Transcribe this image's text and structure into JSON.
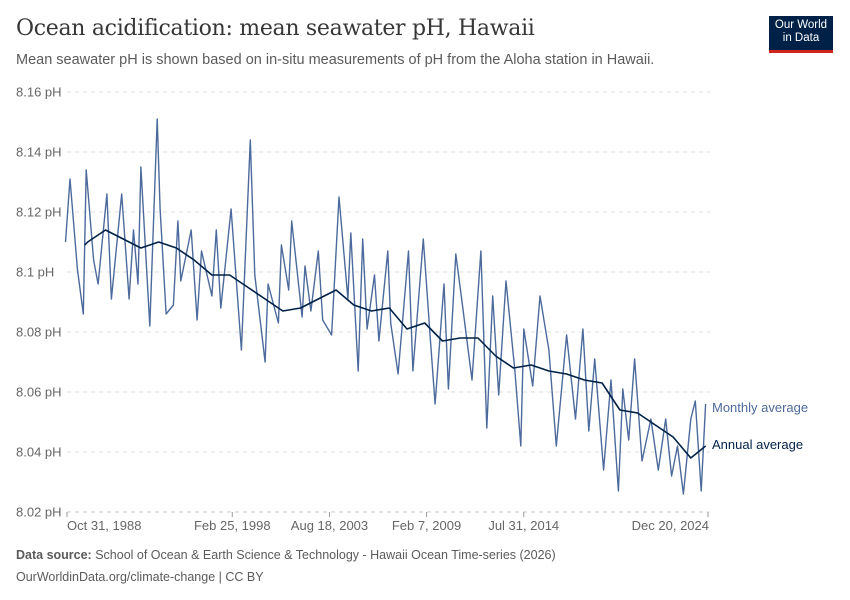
{
  "header": {
    "title": "Ocean acidification: mean seawater pH, Hawaii",
    "subtitle": "Mean seawater pH is shown based on in-situ measurements of pH from the Aloha station in Hawaii.",
    "logo_text": "Our World in Data",
    "logo_line1": "Our World",
    "logo_line2": "in Data"
  },
  "footer": {
    "source_label": "Data source:",
    "source_text": "School of Ocean & Earth Science & Technology - Hawaii Ocean Time-series (2026)",
    "link_text": "OurWorldinData.org/climate-change | CC BY"
  },
  "colors": {
    "monthly": "#4c6a9c",
    "annual": "#002147",
    "grid": "#dddddd",
    "brand": "#002147",
    "brand_accent": "#ce261e"
  },
  "chart_data": {
    "type": "line",
    "title": "Ocean acidification: mean seawater pH, Hawaii",
    "xlim": [
      "1988-10-31",
      "2024-12-20"
    ],
    "ylim": [
      8.02,
      8.16
    ],
    "grid": "horizontal dashed",
    "legend": "right (inline labels)",
    "y_ticks": [
      {
        "value": 8.02,
        "label": "8.02 pH"
      },
      {
        "value": 8.04,
        "label": "8.04 pH"
      },
      {
        "value": 8.06,
        "label": "8.06 pH"
      },
      {
        "value": 8.08,
        "label": "8.08 pH"
      },
      {
        "value": 8.1,
        "label": "8.1 pH"
      },
      {
        "value": 8.12,
        "label": "8.12 pH"
      },
      {
        "value": 8.14,
        "label": "8.14 pH"
      },
      {
        "value": 8.16,
        "label": "8.16 pH"
      }
    ],
    "x_ticks": [
      {
        "date": "1988-10-31",
        "label": "Oct 31, 1988"
      },
      {
        "date": "1998-02-25",
        "label": "Feb 25, 1998"
      },
      {
        "date": "2003-08-18",
        "label": "Aug 18, 2003"
      },
      {
        "date": "2009-02-07",
        "label": "Feb 7, 2009"
      },
      {
        "date": "2014-07-31",
        "label": "Jul 31, 2014"
      },
      {
        "date": "2024-12-20",
        "label": "Dec 20, 2024"
      }
    ],
    "series": [
      {
        "name": "Monthly average",
        "points": [
          [
            "1988-10",
            8.11
          ],
          [
            "1989-01",
            8.131
          ],
          [
            "1989-06",
            8.101
          ],
          [
            "1989-10",
            8.086
          ],
          [
            "1989-12",
            8.134
          ],
          [
            "1990-05",
            8.104
          ],
          [
            "1990-08",
            8.096
          ],
          [
            "1991-02",
            8.126
          ],
          [
            "1991-05",
            8.091
          ],
          [
            "1991-12",
            8.126
          ],
          [
            "1992-05",
            8.091
          ],
          [
            "1992-08",
            8.114
          ],
          [
            "1992-11",
            8.096
          ],
          [
            "1993-01",
            8.135
          ],
          [
            "1993-07",
            8.082
          ],
          [
            "1993-12",
            8.151
          ],
          [
            "1994-02",
            8.121
          ],
          [
            "1994-06",
            8.086
          ],
          [
            "1994-11",
            8.089
          ],
          [
            "1995-02",
            8.117
          ],
          [
            "1995-04",
            8.097
          ],
          [
            "1995-11",
            8.114
          ],
          [
            "1996-03",
            8.084
          ],
          [
            "1996-06",
            8.107
          ],
          [
            "1997-01",
            8.092
          ],
          [
            "1997-04",
            8.114
          ],
          [
            "1997-07",
            8.088
          ],
          [
            "1998-02",
            8.121
          ],
          [
            "1998-09",
            8.074
          ],
          [
            "1999-03",
            8.144
          ],
          [
            "1999-06",
            8.099
          ],
          [
            "2000-01",
            8.07
          ],
          [
            "2000-03",
            8.096
          ],
          [
            "2000-10",
            8.083
          ],
          [
            "2000-12",
            8.109
          ],
          [
            "2001-05",
            8.094
          ],
          [
            "2001-07",
            8.117
          ],
          [
            "2002-02",
            8.085
          ],
          [
            "2002-04",
            8.102
          ],
          [
            "2002-08",
            8.087
          ],
          [
            "2003-01",
            8.107
          ],
          [
            "2003-04",
            8.084
          ],
          [
            "2003-10",
            8.079
          ],
          [
            "2004-03",
            8.125
          ],
          [
            "2004-09",
            8.091
          ],
          [
            "2004-11",
            8.113
          ],
          [
            "2005-04",
            8.067
          ],
          [
            "2005-07",
            8.111
          ],
          [
            "2005-10",
            8.081
          ],
          [
            "2006-03",
            8.099
          ],
          [
            "2006-06",
            8.077
          ],
          [
            "2006-12",
            8.107
          ],
          [
            "2007-02",
            8.083
          ],
          [
            "2007-07",
            8.066
          ],
          [
            "2008-02",
            8.107
          ],
          [
            "2008-05",
            8.067
          ],
          [
            "2008-12",
            8.111
          ],
          [
            "2009-05",
            8.076
          ],
          [
            "2009-08",
            8.056
          ],
          [
            "2010-02",
            8.096
          ],
          [
            "2010-05",
            8.061
          ],
          [
            "2010-10",
            8.106
          ],
          [
            "2011-03",
            8.087
          ],
          [
            "2011-09",
            8.064
          ],
          [
            "2012-03",
            8.107
          ],
          [
            "2012-07",
            8.048
          ],
          [
            "2012-11",
            8.092
          ],
          [
            "2013-03",
            8.059
          ],
          [
            "2013-08",
            8.097
          ],
          [
            "2014-02",
            8.067
          ],
          [
            "2014-06",
            8.042
          ],
          [
            "2014-08",
            8.081
          ],
          [
            "2015-02",
            8.062
          ],
          [
            "2015-07",
            8.092
          ],
          [
            "2016-01",
            8.074
          ],
          [
            "2016-06",
            8.042
          ],
          [
            "2017-01",
            8.079
          ],
          [
            "2017-07",
            8.051
          ],
          [
            "2017-12",
            8.081
          ],
          [
            "2018-04",
            8.047
          ],
          [
            "2018-08",
            8.071
          ],
          [
            "2019-02",
            8.034
          ],
          [
            "2019-07",
            8.064
          ],
          [
            "2019-12",
            8.027
          ],
          [
            "2020-03",
            8.061
          ],
          [
            "2020-07",
            8.044
          ],
          [
            "2020-11",
            8.071
          ],
          [
            "2021-04",
            8.037
          ],
          [
            "2021-10",
            8.051
          ],
          [
            "2022-03",
            8.034
          ],
          [
            "2022-08",
            8.051
          ],
          [
            "2022-12",
            8.032
          ],
          [
            "2023-04",
            8.042
          ],
          [
            "2023-08",
            8.026
          ],
          [
            "2024-01",
            8.051
          ],
          [
            "2024-04",
            8.057
          ],
          [
            "2024-08",
            8.027
          ],
          [
            "2024-11",
            8.056
          ]
        ]
      },
      {
        "name": "Annual average",
        "points": [
          [
            "1989-11",
            8.109
          ],
          [
            "1990-01",
            8.11
          ],
          [
            "1991-01",
            8.114
          ],
          [
            "1992-01",
            8.111
          ],
          [
            "1993-01",
            8.108
          ],
          [
            "1994-01",
            8.11
          ],
          [
            "1995-01",
            8.108
          ],
          [
            "1996-01",
            8.104
          ],
          [
            "1997-01",
            8.099
          ],
          [
            "1998-01",
            8.099
          ],
          [
            "1999-01",
            8.095
          ],
          [
            "2000-01",
            8.091
          ],
          [
            "2001-01",
            8.087
          ],
          [
            "2002-01",
            8.088
          ],
          [
            "2003-01",
            8.091
          ],
          [
            "2004-01",
            8.094
          ],
          [
            "2005-01",
            8.089
          ],
          [
            "2006-01",
            8.087
          ],
          [
            "2007-01",
            8.088
          ],
          [
            "2008-01",
            8.081
          ],
          [
            "2009-01",
            8.083
          ],
          [
            "2010-01",
            8.077
          ],
          [
            "2011-01",
            8.078
          ],
          [
            "2012-01",
            8.078
          ],
          [
            "2013-01",
            8.072
          ],
          [
            "2014-01",
            8.068
          ],
          [
            "2015-01",
            8.069
          ],
          [
            "2016-01",
            8.067
          ],
          [
            "2017-01",
            8.066
          ],
          [
            "2018-01",
            8.064
          ],
          [
            "2019-01",
            8.063
          ],
          [
            "2020-01",
            8.054
          ],
          [
            "2021-01",
            8.053
          ],
          [
            "2022-01",
            8.049
          ],
          [
            "2023-01",
            8.045
          ],
          [
            "2024-01",
            8.038
          ],
          [
            "2024-11",
            8.042
          ]
        ]
      }
    ]
  }
}
